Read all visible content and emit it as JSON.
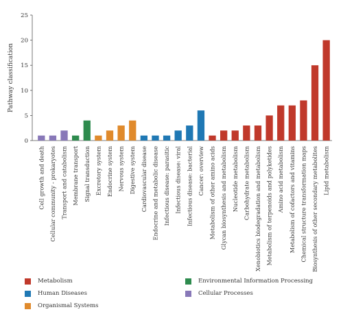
{
  "chart_data": {
    "type": "bar",
    "title": "",
    "xlabel": "",
    "ylabel": "Pathway classification",
    "ylim": [
      0,
      25
    ],
    "yticks": [
      0,
      5,
      10,
      15,
      20,
      25
    ],
    "grid": false,
    "legend_position": "bottom",
    "categories": [
      "Cell growth and death",
      "Cellular community - prokaryotes",
      "Transport and catabolism",
      "Membrane transport",
      "Signal transduction",
      "Excretory system",
      "Endocrine system",
      "Nervous system",
      "Digestive system",
      "Cardiovascular disease",
      "Endocrine and metabolic disease",
      "Infectious disease: parasitic",
      "Infectious disease: viral",
      "Infectious disease: bacterial",
      "Cancer: overview",
      "Metabolism of other amino acids",
      "Glycan biosynthesis and metabolism",
      "Nucleotide metabolism",
      "Carbohydrate metabolism",
      "Xenobiotics biodegradation and metabolism",
      "Metabolism of terpenoids and polyketides",
      "Amino acid metabolism",
      "Metabolism of cofactors and vitamins",
      "Chemical structure transformation maps",
      "Biosynthesis of other secondary metabolites",
      "Lipid metabolism"
    ],
    "values": [
      1,
      1,
      2,
      1,
      4,
      1,
      2,
      3,
      4,
      1,
      1,
      1,
      2,
      3,
      6,
      1,
      2,
      2,
      3,
      3,
      5,
      7,
      7,
      8,
      15,
      20
    ],
    "groups": [
      "Cellular Processes",
      "Cellular Processes",
      "Cellular Processes",
      "Environmental Information Processing",
      "Environmental Information Processing",
      "Organismal Systems",
      "Organismal Systems",
      "Organismal Systems",
      "Organismal Systems",
      "Human Diseases",
      "Human Diseases",
      "Human Diseases",
      "Human Diseases",
      "Human Diseases",
      "Human Diseases",
      "Metabolism",
      "Metabolism",
      "Metabolism",
      "Metabolism",
      "Metabolism",
      "Metabolism",
      "Metabolism",
      "Metabolism",
      "Metabolism",
      "Metabolism",
      "Metabolism"
    ],
    "legend": [
      {
        "name": "Metabolism",
        "color": "#c0392b"
      },
      {
        "name": "Environmental Information Processing",
        "color": "#2e8b4e"
      },
      {
        "name": "Human Diseases",
        "color": "#1f78b4"
      },
      {
        "name": "Cellular Processes",
        "color": "#8878b8"
      },
      {
        "name": "Organismal Systems",
        "color": "#e08a2c"
      }
    ]
  }
}
